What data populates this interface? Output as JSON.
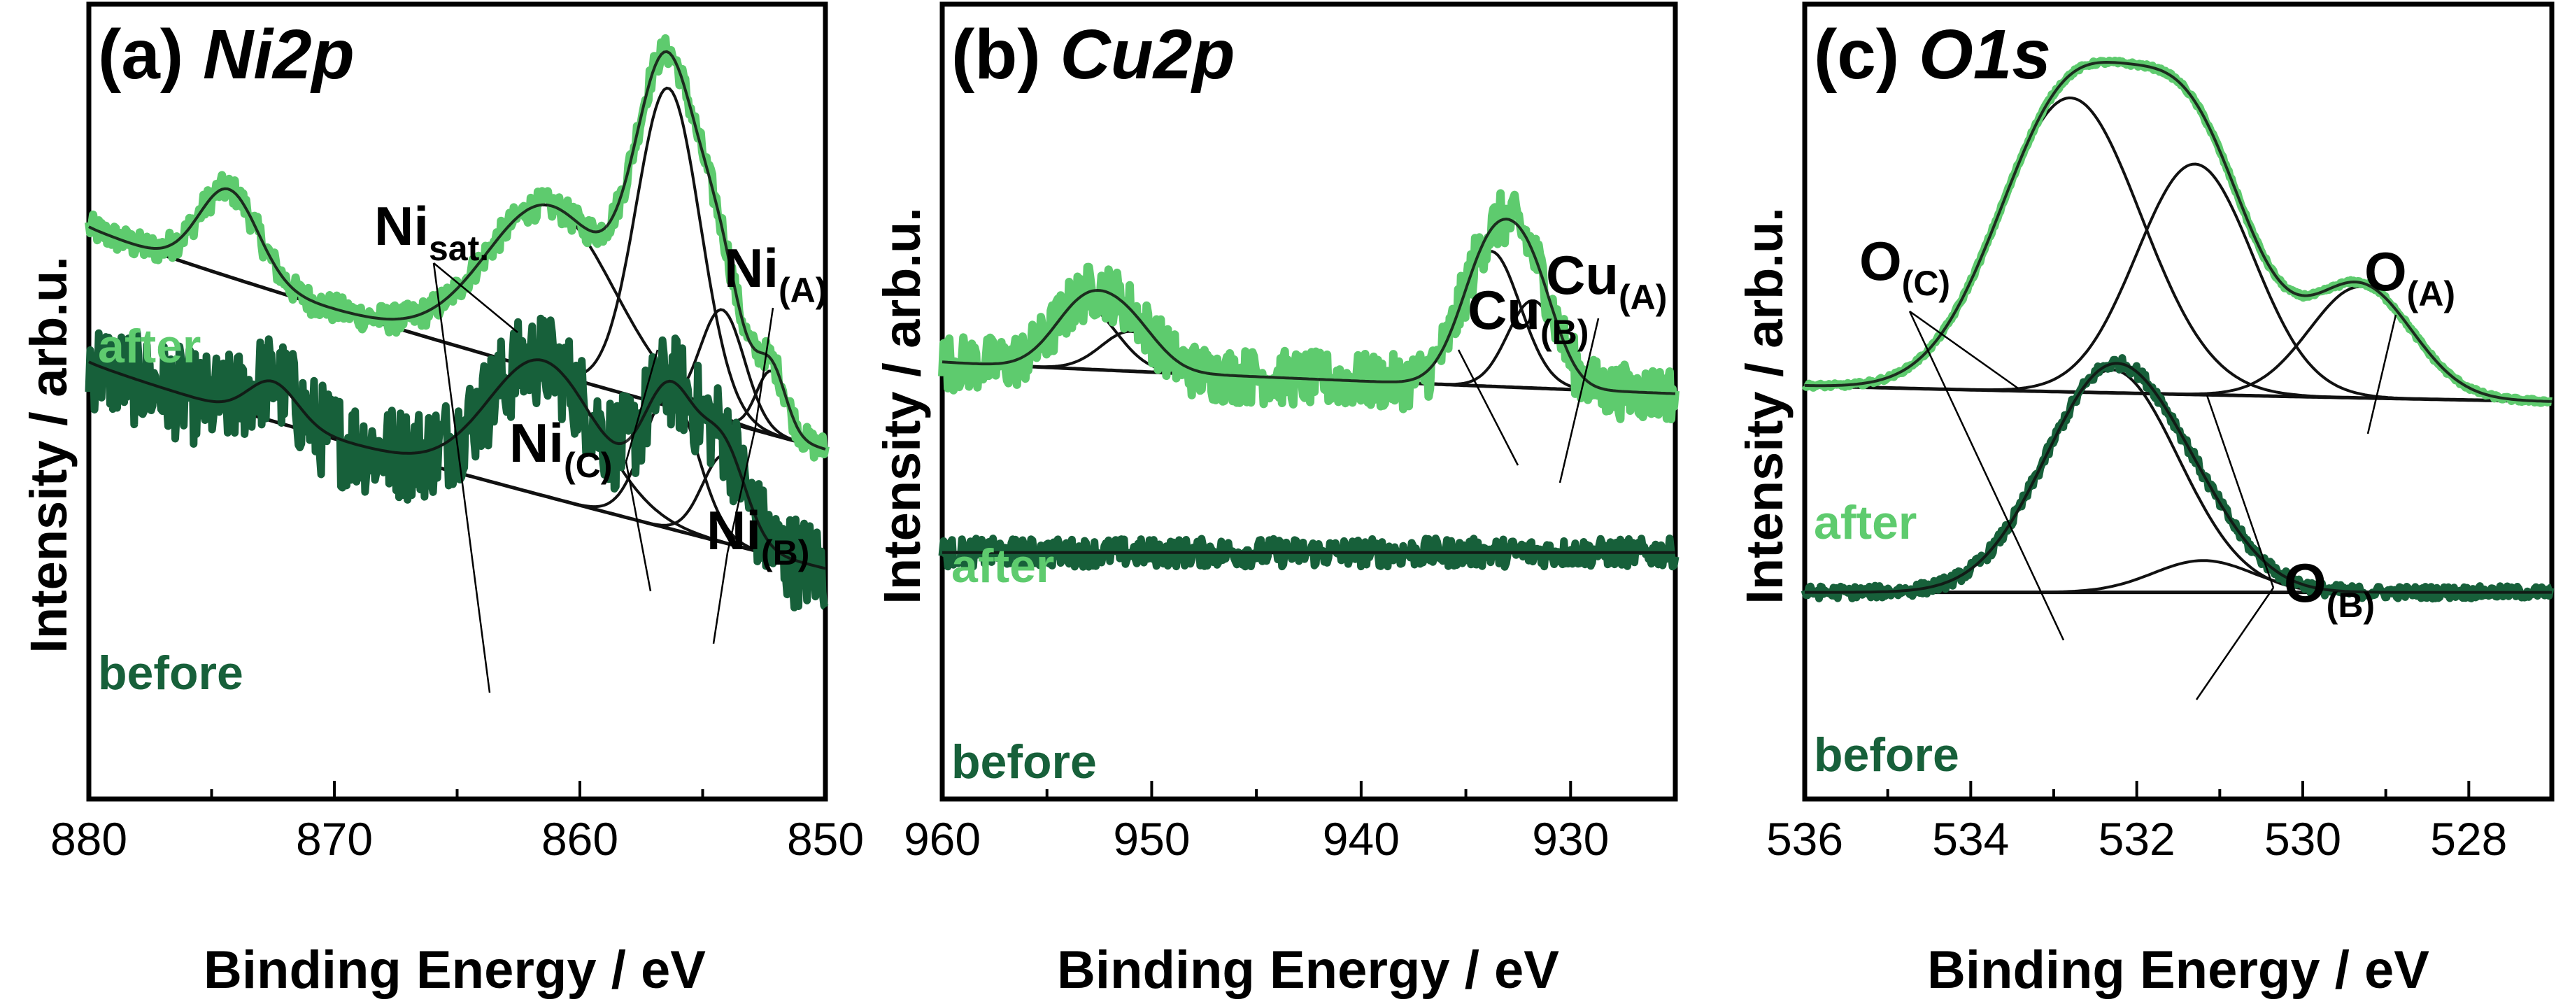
{
  "colors": {
    "after": "#5ecb6e",
    "before": "#17603a",
    "fit": "#111111"
  },
  "chart_data": [
    {
      "type": "line",
      "panel": "a",
      "title": "(a) ",
      "title_element": "Ni2p",
      "xlabel": "Binding Energy / eV",
      "ylabel": "Intensity / arb.u.",
      "xlim": [
        880,
        850
      ],
      "ylim": [
        0,
        1
      ],
      "xticks": [
        "880",
        "870",
        "860",
        "850"
      ],
      "series": [
        {
          "name": "after",
          "label": "after",
          "offset": 0.55,
          "noise": 0.018,
          "peaks": [
            [
              874.3,
              0.11,
              1.2
            ],
            [
              861.2,
              0.21,
              2.6
            ],
            [
              856.4,
              0.4,
              1.3
            ],
            [
              854.2,
              0.14,
              0.9
            ],
            [
              852.2,
              0.08,
              0.6
            ]
          ]
        },
        {
          "name": "before",
          "label": "before",
          "offset": 0.05,
          "noise": 0.06,
          "peaks": [
            [
              872.5,
              0.05,
              1.0
            ],
            [
              861.5,
              0.17,
              2.2
            ],
            [
              856.3,
              0.17,
              1.1
            ],
            [
              854.1,
              0.11,
              0.9
            ]
          ]
        }
      ],
      "peak_labels": [
        {
          "main": "Ni",
          "sub": "sat."
        },
        {
          "main": "Ni",
          "sub": "(A)"
        },
        {
          "main": "Ni",
          "sub": "(C)"
        },
        {
          "main": "Ni",
          "sub": "(B)"
        }
      ]
    },
    {
      "type": "line",
      "panel": "b",
      "title": "(b) ",
      "title_element": "Cu2p",
      "xlabel": "Binding Energy / eV",
      "ylabel": "Intensity / arb.u.",
      "xlim": [
        960,
        925
      ],
      "ylim": [
        0,
        1
      ],
      "xticks": [
        "960",
        "950",
        "940",
        "930"
      ],
      "series": [
        {
          "name": "after",
          "label": "after",
          "offset": 0.48,
          "noise": 0.035,
          "peaks": [
            [
              953.2,
              0.08,
              1.5
            ],
            [
              951.0,
              0.05,
              1.4
            ],
            [
              933.8,
              0.17,
              1.4
            ],
            [
              931.8,
              0.11,
              1.2
            ]
          ]
        },
        {
          "name": "before",
          "label": "before",
          "offset": 0.15,
          "noise": 0.018,
          "peaks": []
        }
      ],
      "peak_labels": [
        {
          "main": "Cu",
          "sub": "(B)"
        },
        {
          "main": "Cu",
          "sub": "(A)"
        }
      ]
    },
    {
      "type": "line",
      "panel": "c",
      "title": "(c) ",
      "title_element": "O1s",
      "xlabel": "Binding Energy / eV",
      "ylabel": "Intensity / arb.u.",
      "xlim": [
        536,
        527
      ],
      "ylim": [
        0,
        1
      ],
      "xticks": [
        "536",
        "534",
        "532",
        "530",
        "528"
      ],
      "series": [
        {
          "name": "after",
          "label": "after",
          "offset": 0.5,
          "noise": 0.006,
          "peaks": [
            [
              532.8,
              0.37,
              0.85
            ],
            [
              531.3,
              0.29,
              0.7
            ],
            [
              529.3,
              0.14,
              0.62
            ]
          ]
        },
        {
          "name": "before",
          "label": "before",
          "offset": 0.16,
          "noise": 0.008,
          "peaks": [
            [
              532.3,
              0.28,
              0.8
            ],
            [
              531.2,
              0.04,
              0.6
            ]
          ]
        }
      ],
      "peak_labels": [
        {
          "main": "O",
          "sub": "(C)"
        },
        {
          "main": "O",
          "sub": "(A)"
        },
        {
          "main": "O",
          "sub": "(B)"
        }
      ]
    }
  ]
}
